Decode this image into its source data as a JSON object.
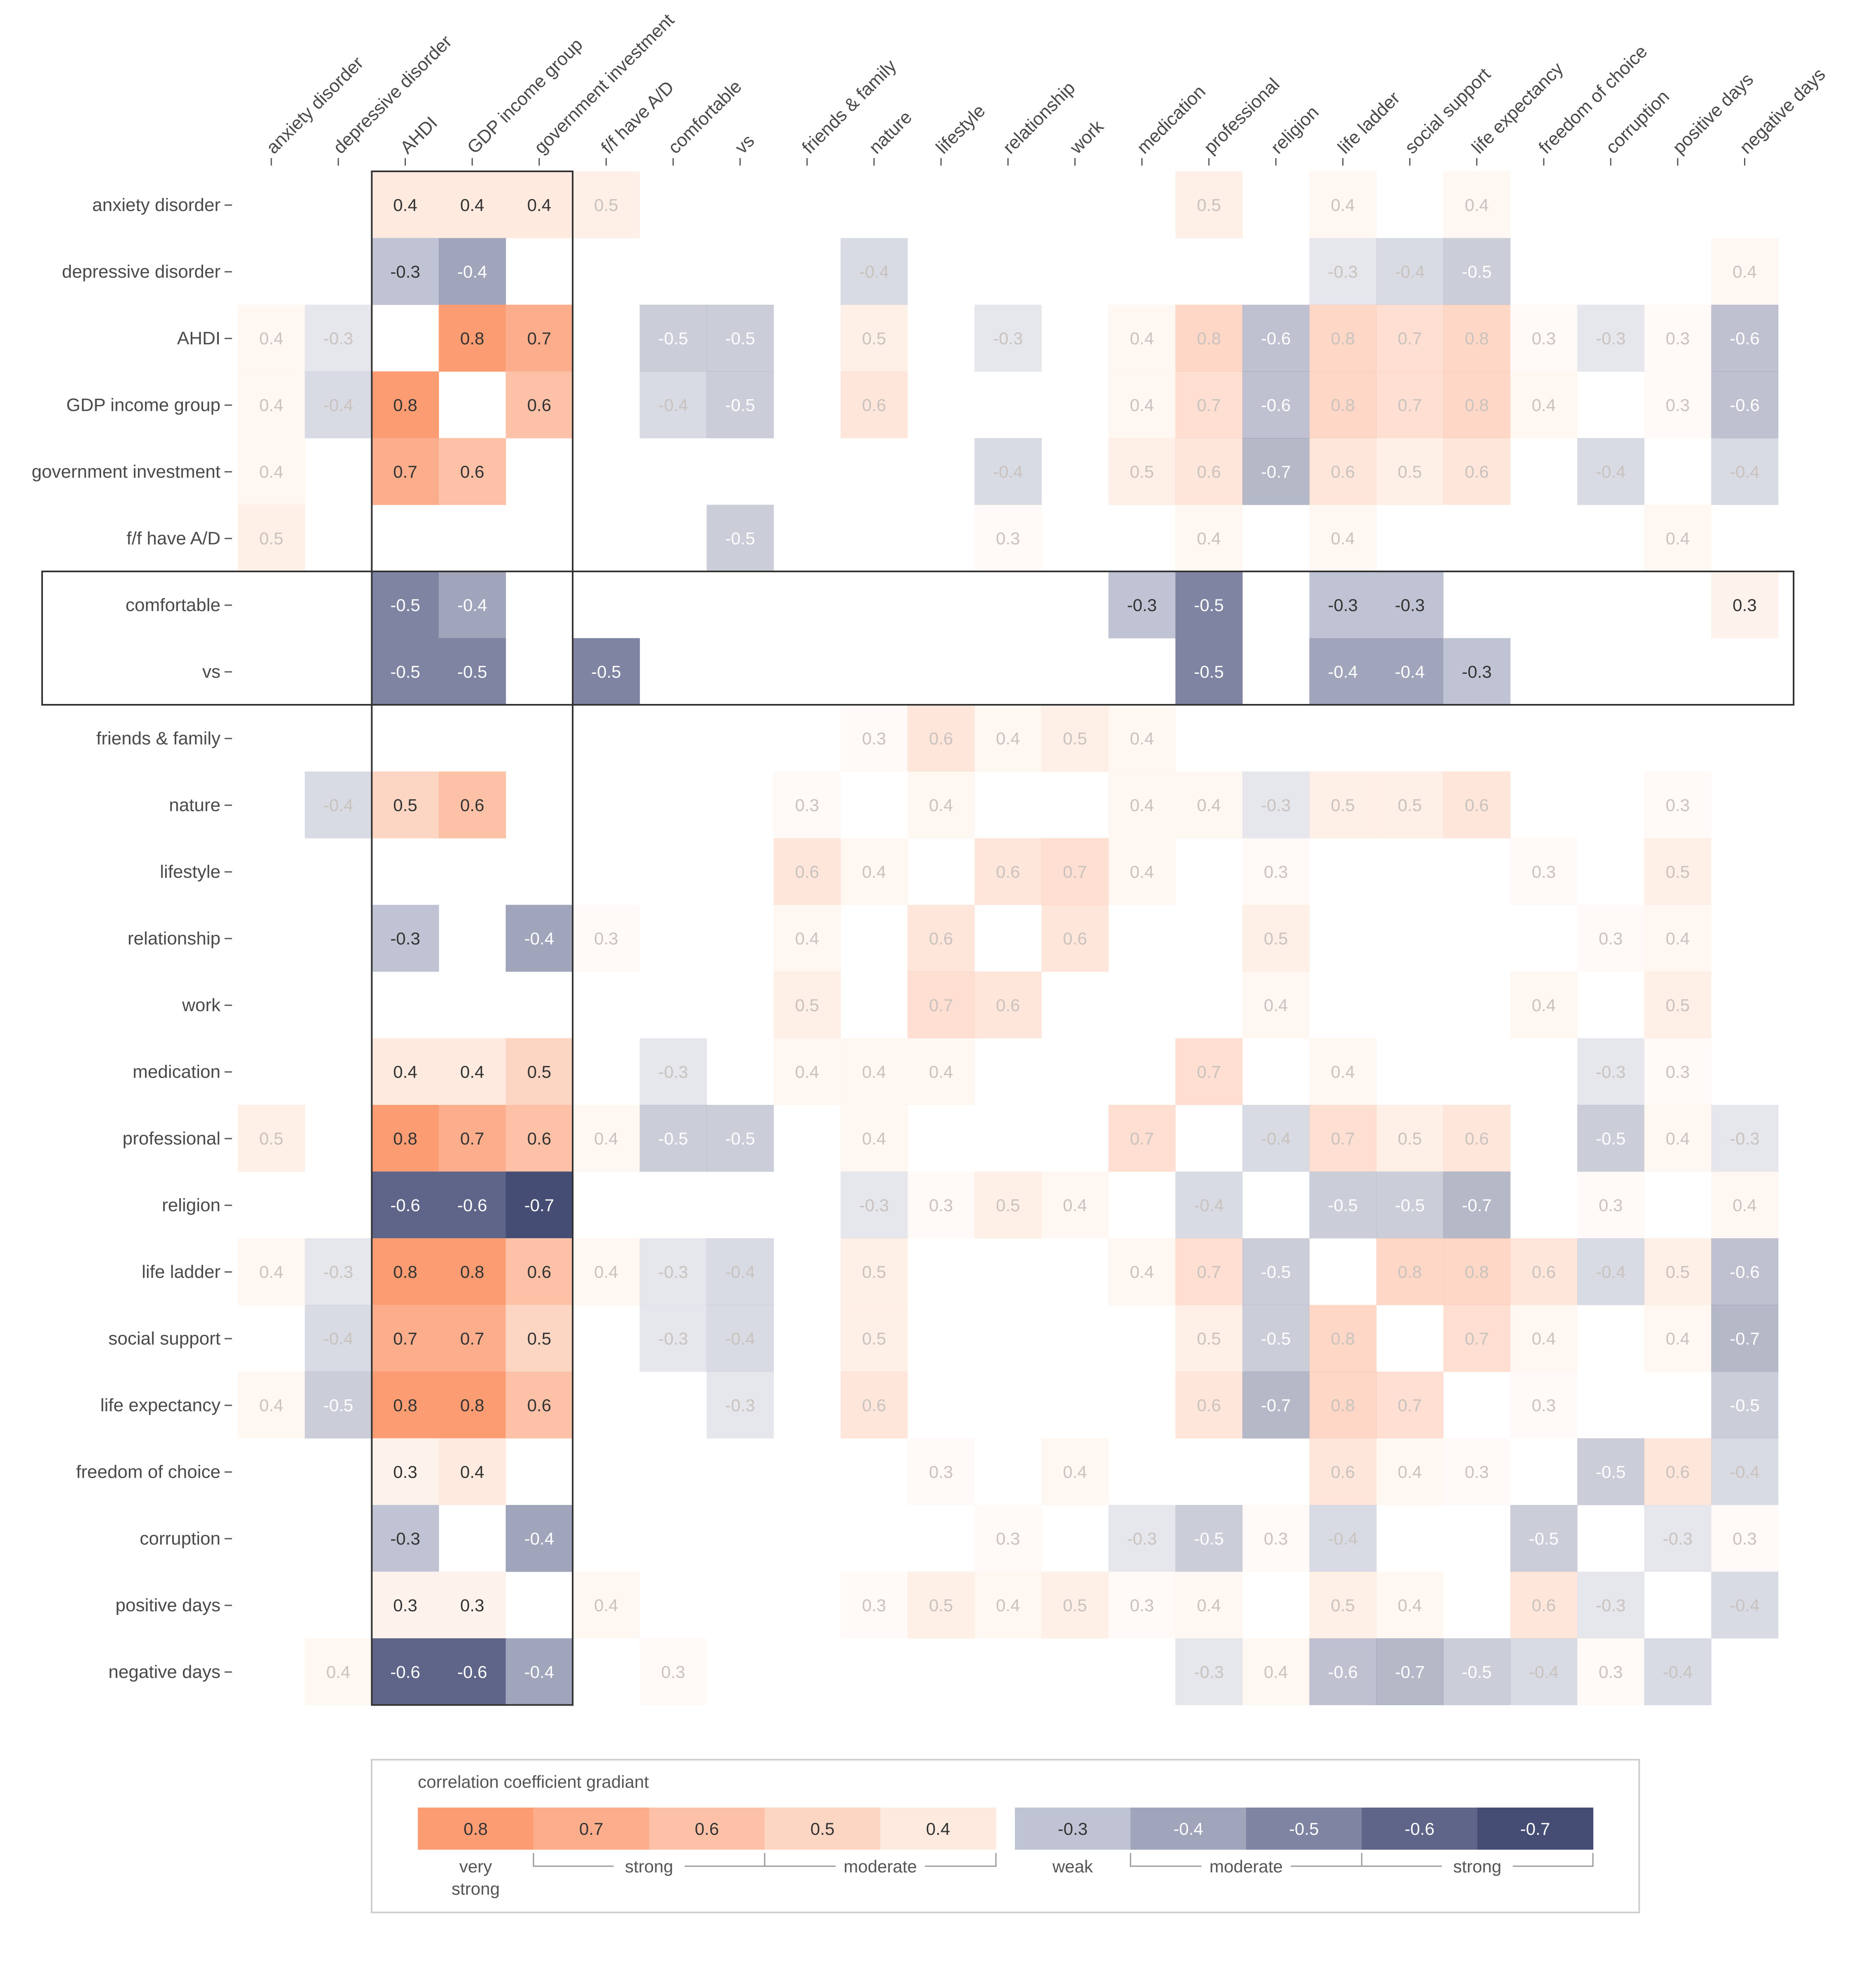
{
  "chart_data": {
    "type": "heatmap",
    "labels": [
      "anxiety disorder",
      "depressive disorder",
      "AHDI",
      "GDP income group",
      "government investment",
      "f/f have A/D",
      "comfortable",
      "vs",
      "friends & family",
      "nature",
      "lifestyle",
      "relationship",
      "work",
      "medication",
      "professional",
      "religion",
      "life ladder",
      "social support",
      "life expectancy",
      "freedom of choice",
      "corruption",
      "positive days",
      "negative days"
    ],
    "highlight_columns": [
      "AHDI",
      "GDP income group",
      "government investment"
    ],
    "highlight_rows": [
      "comfortable",
      "vs"
    ],
    "matrix": [
      [
        null,
        null,
        0.4,
        0.4,
        0.4,
        0.5,
        null,
        null,
        null,
        null,
        null,
        null,
        null,
        null,
        0.5,
        null,
        0.4,
        null,
        0.4,
        null,
        null,
        null,
        null
      ],
      [
        null,
        null,
        -0.3,
        -0.4,
        null,
        null,
        null,
        null,
        null,
        -0.4,
        null,
        null,
        null,
        null,
        null,
        null,
        -0.3,
        -0.4,
        -0.5,
        null,
        null,
        null,
        0.4
      ],
      [
        0.4,
        -0.3,
        null,
        0.8,
        0.7,
        null,
        -0.5,
        -0.5,
        null,
        0.5,
        null,
        -0.3,
        null,
        0.4,
        0.8,
        -0.6,
        0.8,
        0.7,
        0.8,
        0.3,
        -0.3,
        0.3,
        -0.6
      ],
      [
        0.4,
        -0.4,
        0.8,
        null,
        0.6,
        null,
        -0.4,
        -0.5,
        null,
        0.6,
        null,
        null,
        null,
        0.4,
        0.7,
        -0.6,
        0.8,
        0.7,
        0.8,
        0.4,
        null,
        0.3,
        -0.6
      ],
      [
        0.4,
        null,
        0.7,
        0.6,
        null,
        null,
        null,
        null,
        null,
        null,
        null,
        -0.4,
        null,
        0.5,
        0.6,
        -0.7,
        0.6,
        0.5,
        0.6,
        null,
        -0.4,
        null,
        -0.4
      ],
      [
        0.5,
        null,
        null,
        null,
        null,
        null,
        null,
        -0.5,
        null,
        null,
        null,
        0.3,
        null,
        null,
        0.4,
        null,
        0.4,
        null,
        null,
        null,
        null,
        0.4,
        null
      ],
      [
        null,
        null,
        -0.5,
        -0.4,
        null,
        null,
        null,
        null,
        null,
        null,
        null,
        null,
        null,
        -0.3,
        -0.5,
        null,
        -0.3,
        -0.3,
        null,
        null,
        null,
        null,
        0.3
      ],
      [
        null,
        null,
        -0.5,
        -0.5,
        null,
        -0.5,
        null,
        null,
        null,
        null,
        null,
        null,
        null,
        null,
        -0.5,
        null,
        -0.4,
        -0.4,
        -0.3,
        null,
        null,
        null,
        null
      ],
      [
        null,
        null,
        null,
        null,
        null,
        null,
        null,
        null,
        null,
        0.3,
        0.6,
        0.4,
        0.5,
        0.4,
        null,
        null,
        null,
        null,
        null,
        null,
        null,
        null,
        null
      ],
      [
        null,
        -0.4,
        0.5,
        0.6,
        null,
        null,
        null,
        null,
        0.3,
        null,
        0.4,
        null,
        null,
        0.4,
        0.4,
        -0.3,
        0.5,
        0.5,
        0.6,
        null,
        null,
        0.3,
        null
      ],
      [
        null,
        null,
        null,
        null,
        null,
        null,
        null,
        null,
        0.6,
        0.4,
        null,
        0.6,
        0.7,
        0.4,
        null,
        0.3,
        null,
        null,
        null,
        0.3,
        null,
        0.5,
        null
      ],
      [
        null,
        null,
        -0.3,
        null,
        -0.4,
        0.3,
        null,
        null,
        0.4,
        null,
        0.6,
        null,
        0.6,
        null,
        null,
        0.5,
        null,
        null,
        null,
        null,
        0.3,
        0.4,
        null
      ],
      [
        null,
        null,
        null,
        null,
        null,
        null,
        null,
        null,
        0.5,
        null,
        0.7,
        0.6,
        null,
        null,
        null,
        0.4,
        null,
        null,
        null,
        0.4,
        null,
        0.5,
        null
      ],
      [
        null,
        null,
        0.4,
        0.4,
        0.5,
        null,
        -0.3,
        null,
        0.4,
        0.4,
        0.4,
        null,
        null,
        null,
        0.7,
        null,
        0.4,
        null,
        null,
        null,
        -0.3,
        0.3,
        null
      ],
      [
        0.5,
        null,
        0.8,
        0.7,
        0.6,
        0.4,
        -0.5,
        -0.5,
        null,
        0.4,
        null,
        null,
        null,
        0.7,
        null,
        -0.4,
        0.7,
        0.5,
        0.6,
        null,
        -0.5,
        0.4,
        -0.3
      ],
      [
        null,
        null,
        -0.6,
        -0.6,
        -0.7,
        null,
        null,
        null,
        null,
        -0.3,
        0.3,
        0.5,
        0.4,
        null,
        -0.4,
        null,
        -0.5,
        -0.5,
        -0.7,
        null,
        0.3,
        null,
        0.4
      ],
      [
        0.4,
        -0.3,
        0.8,
        0.8,
        0.6,
        0.4,
        -0.3,
        -0.4,
        null,
        0.5,
        null,
        null,
        null,
        0.4,
        0.7,
        -0.5,
        null,
        0.8,
        0.8,
        0.6,
        -0.4,
        0.5,
        -0.6
      ],
      [
        null,
        -0.4,
        0.7,
        0.7,
        0.5,
        null,
        -0.3,
        -0.4,
        null,
        0.5,
        null,
        null,
        null,
        null,
        0.5,
        -0.5,
        0.8,
        null,
        0.7,
        0.4,
        null,
        0.4,
        -0.7
      ],
      [
        0.4,
        -0.5,
        0.8,
        0.8,
        0.6,
        null,
        null,
        -0.3,
        null,
        0.6,
        null,
        null,
        null,
        null,
        0.6,
        -0.7,
        0.8,
        0.7,
        null,
        0.3,
        null,
        null,
        -0.5
      ],
      [
        null,
        null,
        0.3,
        0.4,
        null,
        null,
        null,
        null,
        null,
        null,
        0.3,
        null,
        0.4,
        null,
        null,
        null,
        0.6,
        0.4,
        0.3,
        null,
        -0.5,
        0.6,
        -0.4
      ],
      [
        null,
        null,
        -0.3,
        null,
        -0.4,
        null,
        null,
        null,
        null,
        null,
        null,
        0.3,
        null,
        -0.3,
        -0.5,
        0.3,
        -0.4,
        null,
        null,
        -0.5,
        null,
        -0.3,
        0.3
      ],
      [
        null,
        null,
        0.3,
        0.3,
        null,
        0.4,
        null,
        null,
        null,
        0.3,
        0.5,
        0.4,
        0.5,
        0.3,
        0.4,
        null,
        0.5,
        0.4,
        null,
        0.6,
        -0.3,
        null,
        -0.4
      ],
      [
        null,
        0.4,
        -0.6,
        -0.6,
        -0.4,
        null,
        0.3,
        null,
        null,
        null,
        null,
        null,
        null,
        null,
        -0.3,
        0.4,
        -0.6,
        -0.7,
        -0.5,
        -0.4,
        0.3,
        -0.4,
        null
      ]
    ],
    "colors": {
      "0.8": "#FC9C72",
      "0.7": "#FCAE8C",
      "0.6": "#FCC1A6",
      "0.5": "#FDD6C3",
      "0.4": "#FEEADF",
      "0.3": "#FEF2EC",
      "-0.3": "#C0C3D3",
      "-0.4": "#A0A5BB",
      "-0.5": "#7E84A1",
      "-0.6": "#5E6589",
      "-0.7": "#454D74"
    },
    "legend": {
      "title": "correlation coefficient gradiant",
      "positive": [
        0.8,
        0.7,
        0.6,
        0.5,
        0.4
      ],
      "negative": [
        -0.3,
        -0.4,
        -0.5,
        -0.6,
        -0.7
      ],
      "groups": [
        {
          "label": "very strong",
          "lines": [
            "very",
            "strong"
          ]
        },
        {
          "label": "strong"
        },
        {
          "label": "moderate"
        },
        {
          "label": "weak"
        },
        {
          "label": "moderate"
        },
        {
          "label": "strong"
        }
      ]
    }
  }
}
